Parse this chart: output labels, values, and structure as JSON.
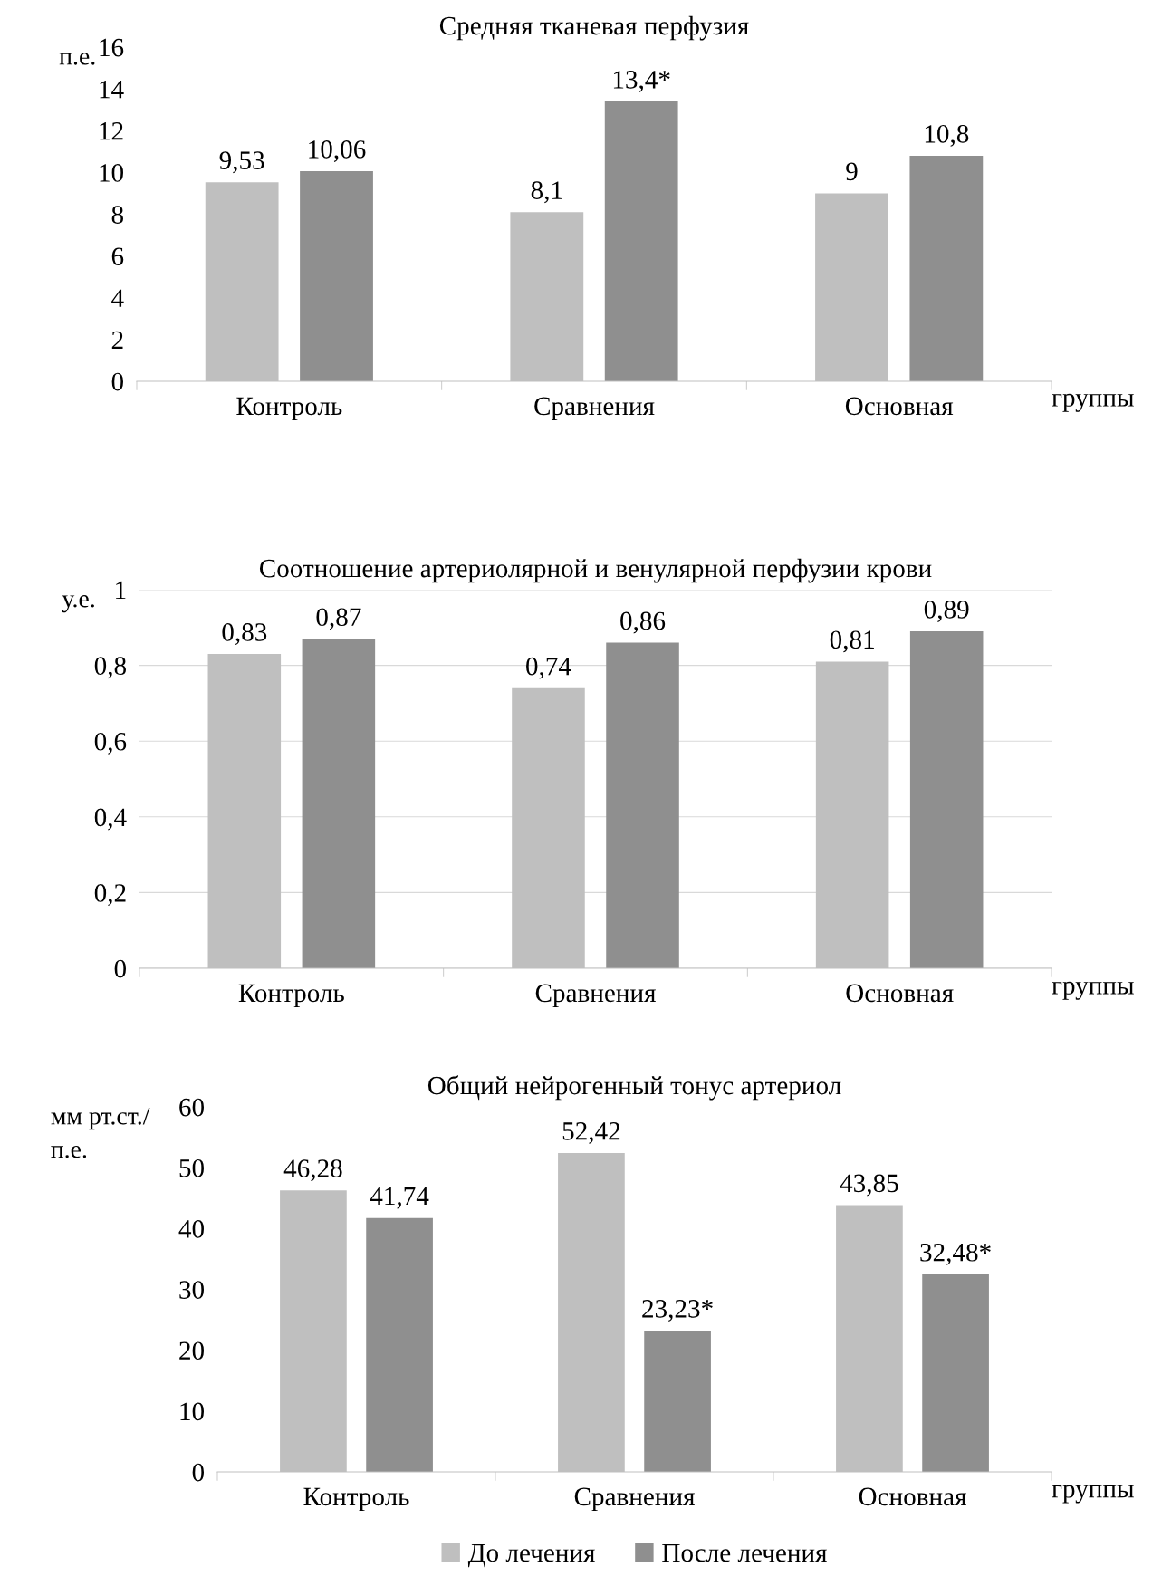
{
  "chart_data": [
    {
      "type": "bar",
      "title": "Средняя тканевая перфузия",
      "ylabel": "п.е.",
      "xlabel": "группы",
      "categories": [
        "Контроль",
        "Сравнения",
        "Основная"
      ],
      "series": [
        {
          "color": "#bfbfbf",
          "values": [
            9.53,
            8.1,
            9
          ],
          "value_labels": [
            "9,53",
            "8,1",
            "9"
          ]
        },
        {
          "color": "#8f8f8f",
          "values": [
            10.06,
            13.4,
            10.8
          ],
          "value_labels": [
            "10,06",
            "13,4*",
            "10,8"
          ]
        }
      ],
      "ylim": [
        0,
        16
      ],
      "yticks": [
        0,
        2,
        4,
        6,
        8,
        10,
        12,
        14,
        16
      ],
      "grid": false
    },
    {
      "type": "bar",
      "title": "Соотношение артериолярной и венулярной перфузии крови",
      "ylabel": "у.е.",
      "xlabel": "группы",
      "categories": [
        "Контроль",
        "Сравнения",
        "Основная"
      ],
      "series": [
        {
          "color": "#bfbfbf",
          "values": [
            0.83,
            0.74,
            0.81
          ],
          "value_labels": [
            "0,83",
            "0,74",
            "0,81"
          ]
        },
        {
          "color": "#8f8f8f",
          "values": [
            0.87,
            0.86,
            0.89
          ],
          "value_labels": [
            "0,87",
            "0,86",
            "0,89"
          ]
        }
      ],
      "ylim": [
        0,
        1
      ],
      "yticks": [
        0,
        {
          "value": 0.2,
          "label": "0,2"
        },
        {
          "value": 0.4,
          "label": "0,4"
        },
        {
          "value": 0.6,
          "label": "0,6"
        },
        {
          "value": 0.8,
          "label": "0,8"
        },
        1
      ],
      "grid": "y"
    },
    {
      "type": "bar",
      "title": "Общий нейрогенный тонус артериол",
      "ylabel": "мм рт.ст./\nп.е.",
      "xlabel": "группы",
      "categories": [
        "Контроль",
        "Сравнения",
        "Основная"
      ],
      "series": [
        {
          "name": "До лечения",
          "color": "#bfbfbf",
          "values": [
            46.28,
            52.42,
            43.85
          ],
          "value_labels": [
            "46,28",
            "52,42",
            "43,85"
          ]
        },
        {
          "name": "После лечения",
          "color": "#8f8f8f",
          "values": [
            41.74,
            23.23,
            32.48
          ],
          "value_labels": [
            "41,74",
            "23,23*",
            "32,48*"
          ]
        }
      ],
      "ylim": [
        0,
        60
      ],
      "yticks": [
        0,
        10,
        20,
        30,
        40,
        50,
        60
      ],
      "grid": false,
      "legend": "bottom"
    }
  ]
}
